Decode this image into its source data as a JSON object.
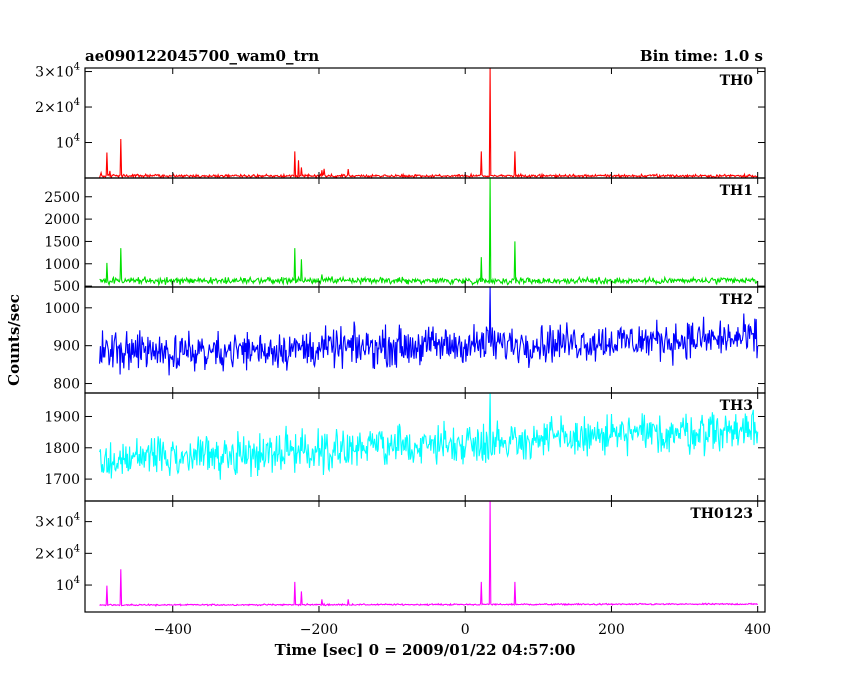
{
  "chart_data": {
    "type": "line",
    "title": "ae090122045700_wam0_trn",
    "subtitle": "Bin time: 1.0 s",
    "xlabel": "Time [sec] 0 = 2009/01/22 04:57:00",
    "ylabel": "Counts/sec",
    "xlim": [
      -520,
      410
    ],
    "x_ticks": [
      -400,
      -200,
      0,
      200,
      400
    ],
    "x_tick_labels": [
      "−400",
      "−200",
      "0",
      "200",
      "400"
    ],
    "grid": false,
    "panels": [
      {
        "name": "TH0",
        "color": "#ff0000",
        "ylim": [
          0,
          31000
        ],
        "y_ticks": [
          10000,
          20000,
          30000
        ],
        "y_tick_labels": [
          {
            "mant": "",
            "exp": "4"
          },
          {
            "mant": "2×",
            "exp": "4"
          },
          {
            "mant": "3×",
            "exp": "4"
          }
        ],
        "baseline": 600,
        "noise": 300,
        "trend": 0,
        "clip": false,
        "spikes": [
          {
            "x": -502,
            "y": 2500
          },
          {
            "x": -498,
            "y": 1500
          },
          {
            "x": -490,
            "y": 7200
          },
          {
            "x": -486,
            "y": 2000
          },
          {
            "x": -471,
            "y": 11000
          },
          {
            "x": -233,
            "y": 7500
          },
          {
            "x": -228,
            "y": 5000
          },
          {
            "x": -224,
            "y": 3000
          },
          {
            "x": -196,
            "y": 2200
          },
          {
            "x": -193,
            "y": 2600
          },
          {
            "x": -160,
            "y": 2500
          },
          {
            "x": 22,
            "y": 7500
          },
          {
            "x": 34,
            "y": 31000
          },
          {
            "x": 68,
            "y": 7500
          }
        ]
      },
      {
        "name": "TH1",
        "color": "#00e000",
        "ylim": [
          480,
          2920
        ],
        "y_ticks": [
          500,
          1000,
          1500,
          2000,
          2500
        ],
        "y_tick_labels": [
          "500",
          "1000",
          "1500",
          "2000",
          "2500"
        ],
        "baseline": 620,
        "noise": 55,
        "trend": 0,
        "clip": false,
        "spikes": [
          {
            "x": -502,
            "y": 720
          },
          {
            "x": -490,
            "y": 1020
          },
          {
            "x": -471,
            "y": 1350
          },
          {
            "x": -233,
            "y": 1350
          },
          {
            "x": -224,
            "y": 1100
          },
          {
            "x": -196,
            "y": 760
          },
          {
            "x": 22,
            "y": 1150
          },
          {
            "x": 34,
            "y": 2920
          },
          {
            "x": 68,
            "y": 1500
          }
        ]
      },
      {
        "name": "TH2",
        "color": "#0000ff",
        "ylim": [
          775,
          1055
        ],
        "y_ticks": [
          800,
          900,
          1000
        ],
        "y_tick_labels": [
          "800",
          "900",
          "1000"
        ],
        "baseline": 880,
        "noise": 38,
        "trend": 40,
        "clip": true,
        "spikes": [
          {
            "x": 34,
            "y": 1055
          }
        ]
      },
      {
        "name": "TH3",
        "color": "#00ffff",
        "ylim": [
          1630,
          1975
        ],
        "y_ticks": [
          1700,
          1800,
          1900
        ],
        "y_tick_labels": [
          "1700",
          "1800",
          "1900"
        ],
        "baseline": 1760,
        "noise": 48,
        "trend": 100,
        "clip": true,
        "spikes": [
          {
            "x": 34,
            "y": 1975
          }
        ]
      },
      {
        "name": "TH0123",
        "color": "#ff00ff",
        "ylim": [
          1500,
          36500
        ],
        "y_ticks": [
          10000,
          20000,
          30000
        ],
        "y_tick_labels": [
          {
            "mant": "",
            "exp": "4"
          },
          {
            "mant": "2×",
            "exp": "4"
          },
          {
            "mant": "3×",
            "exp": "4"
          }
        ],
        "baseline": 3700,
        "noise": 180,
        "trend": 300,
        "clip": false,
        "spikes": [
          {
            "x": -502,
            "y": 5200
          },
          {
            "x": -490,
            "y": 9800
          },
          {
            "x": -471,
            "y": 15000
          },
          {
            "x": -233,
            "y": 11000
          },
          {
            "x": -224,
            "y": 8000
          },
          {
            "x": -196,
            "y": 5500
          },
          {
            "x": -160,
            "y": 5500
          },
          {
            "x": 22,
            "y": 11000
          },
          {
            "x": 34,
            "y": 36500
          },
          {
            "x": 68,
            "y": 11000
          }
        ]
      }
    ]
  }
}
